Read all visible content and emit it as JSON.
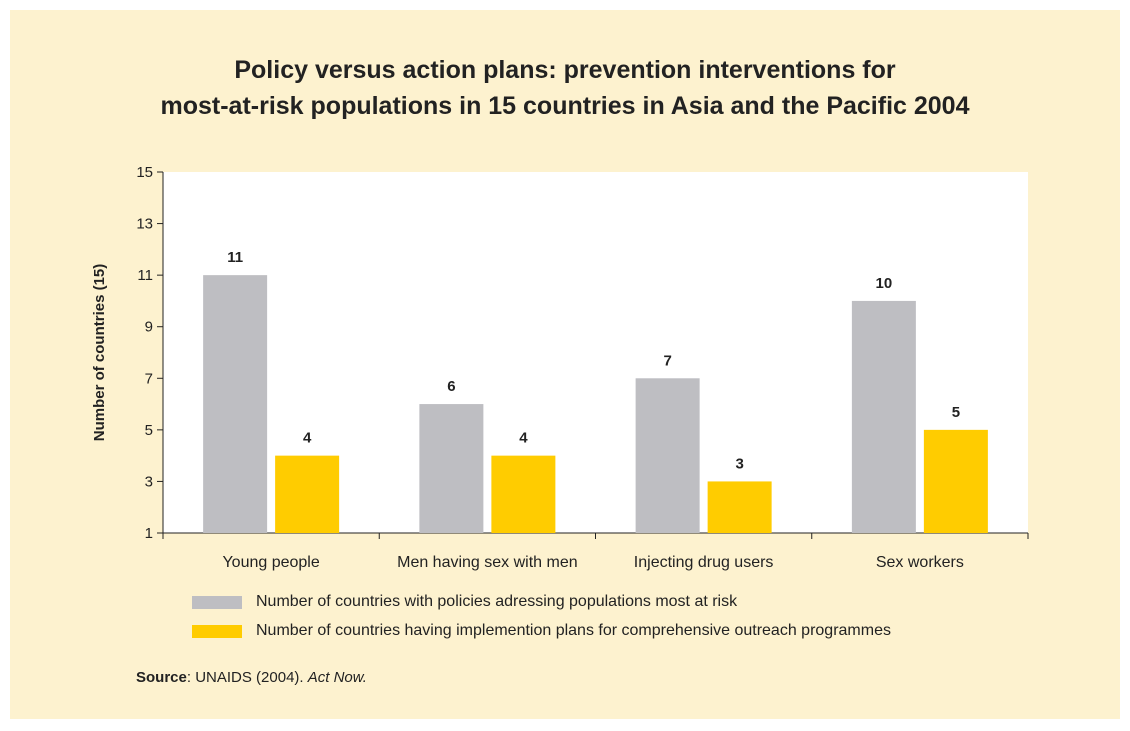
{
  "title_line1": "Policy versus action plans: prevention interventions for",
  "title_line2": "most-at-risk populations in 15 countries in Asia and the Pacific 2004",
  "source": {
    "label": "Source",
    "sep": ":",
    "text": " UNAIDS (2004). ",
    "italic": "Act Now."
  },
  "colors": {
    "background": "#fdf2cf",
    "plot": "#ffffff",
    "series1": "#bebec2",
    "series2": "#ffcc00"
  },
  "chart_data": {
    "type": "bar",
    "title": "Policy versus action plans: prevention interventions for most-at-risk populations in 15 countries in Asia and the Pacific 2004",
    "categories": [
      "Young people",
      "Men having sex with men",
      "Injecting drug users",
      "Sex workers"
    ],
    "series": [
      {
        "name": "Number of countries with policies adressing populations most at risk",
        "values": [
          11,
          6,
          7,
          10
        ],
        "color": "#bebec2"
      },
      {
        "name": "Number of countries having implemention plans for comprehensive outreach programmes",
        "values": [
          4,
          4,
          3,
          5
        ],
        "color": "#ffcc00"
      }
    ],
    "ylabel": "Number of countries (15)",
    "ylim": [
      1,
      15
    ],
    "yticks": [
      "1",
      "3",
      "5",
      "7",
      "9",
      "11",
      "13",
      "15"
    ],
    "grid": false,
    "legend_position": "bottom"
  }
}
